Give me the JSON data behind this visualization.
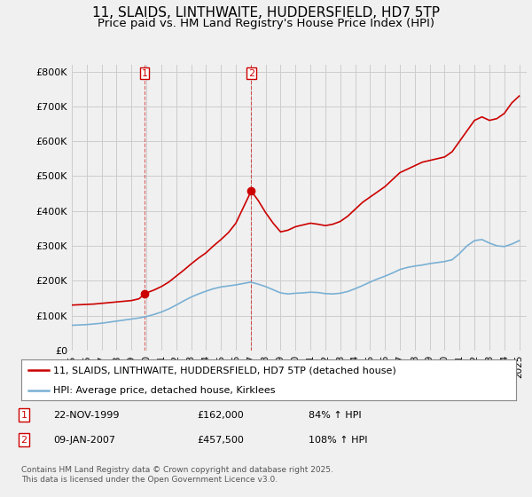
{
  "title": "11, SLAIDS, LINTHWAITE, HUDDERSFIELD, HD7 5TP",
  "subtitle": "Price paid vs. HM Land Registry's House Price Index (HPI)",
  "title_fontsize": 11,
  "subtitle_fontsize": 9.5,
  "background_color": "#f0f0f0",
  "plot_bg_color": "#f0f0f0",
  "grid_color": "#cccccc",
  "red_color": "#cc0000",
  "blue_color": "#7ab0d4",
  "ylim": [
    0,
    820000
  ],
  "yticks": [
    0,
    100000,
    200000,
    300000,
    400000,
    500000,
    600000,
    700000,
    800000
  ],
  "ytick_labels": [
    "£0",
    "£100K",
    "£200K",
    "£300K",
    "£400K",
    "£500K",
    "£600K",
    "£700K",
    "£800K"
  ],
  "xmin": 1995.0,
  "xmax": 2025.5,
  "transaction1_date": 1999.89,
  "transaction1_price": 162000,
  "transaction2_date": 2007.03,
  "transaction2_price": 457500,
  "legend_label_red": "11, SLAIDS, LINTHWAITE, HUDDERSFIELD, HD7 5TP (detached house)",
  "legend_label_blue": "HPI: Average price, detached house, Kirklees",
  "footer": "Contains HM Land Registry data © Crown copyright and database right 2025.\nThis data is licensed under the Open Government Licence v3.0.",
  "red_line_x": [
    1995.0,
    1995.5,
    1996.0,
    1996.5,
    1997.0,
    1997.5,
    1998.0,
    1998.5,
    1999.0,
    1999.5,
    1999.89,
    2000.0,
    2000.5,
    2001.0,
    2001.5,
    2002.0,
    2002.5,
    2003.0,
    2003.5,
    2004.0,
    2004.5,
    2005.0,
    2005.5,
    2006.0,
    2006.5,
    2007.03,
    2007.5,
    2008.0,
    2008.5,
    2009.0,
    2009.5,
    2010.0,
    2010.5,
    2011.0,
    2011.5,
    2012.0,
    2012.5,
    2013.0,
    2013.5,
    2014.0,
    2014.5,
    2015.0,
    2015.5,
    2016.0,
    2016.5,
    2017.0,
    2017.5,
    2018.0,
    2018.5,
    2019.0,
    2019.5,
    2020.0,
    2020.5,
    2021.0,
    2021.5,
    2022.0,
    2022.5,
    2023.0,
    2023.5,
    2024.0,
    2024.5,
    2025.0
  ],
  "red_line_y": [
    130000,
    131000,
    132000,
    133000,
    135000,
    137000,
    139000,
    141000,
    143000,
    148000,
    162000,
    165000,
    173000,
    183000,
    196000,
    213000,
    230000,
    248000,
    265000,
    280000,
    300000,
    318000,
    338000,
    365000,
    410000,
    457500,
    430000,
    395000,
    365000,
    340000,
    345000,
    355000,
    360000,
    365000,
    362000,
    358000,
    362000,
    370000,
    385000,
    405000,
    425000,
    440000,
    455000,
    470000,
    490000,
    510000,
    520000,
    530000,
    540000,
    545000,
    550000,
    555000,
    570000,
    600000,
    630000,
    660000,
    670000,
    660000,
    665000,
    680000,
    710000,
    730000
  ],
  "blue_line_x": [
    1995.0,
    1995.5,
    1996.0,
    1996.5,
    1997.0,
    1997.5,
    1998.0,
    1998.5,
    1999.0,
    1999.5,
    2000.0,
    2000.5,
    2001.0,
    2001.5,
    2002.0,
    2002.5,
    2003.0,
    2003.5,
    2004.0,
    2004.5,
    2005.0,
    2005.5,
    2006.0,
    2006.5,
    2007.0,
    2007.5,
    2008.0,
    2008.5,
    2009.0,
    2009.5,
    2010.0,
    2010.5,
    2011.0,
    2011.5,
    2012.0,
    2012.5,
    2013.0,
    2013.5,
    2014.0,
    2014.5,
    2015.0,
    2015.5,
    2016.0,
    2016.5,
    2017.0,
    2017.5,
    2018.0,
    2018.5,
    2019.0,
    2019.5,
    2020.0,
    2020.5,
    2021.0,
    2021.5,
    2022.0,
    2022.5,
    2023.0,
    2023.5,
    2024.0,
    2024.5,
    2025.0
  ],
  "blue_line_y": [
    72000,
    73000,
    74000,
    76000,
    78000,
    81000,
    84000,
    87000,
    90000,
    93000,
    97000,
    103000,
    110000,
    119000,
    130000,
    142000,
    153000,
    162000,
    170000,
    177000,
    182000,
    185000,
    188000,
    192000,
    196000,
    190000,
    183000,
    174000,
    165000,
    162000,
    164000,
    165000,
    167000,
    166000,
    163000,
    162000,
    164000,
    169000,
    177000,
    186000,
    196000,
    205000,
    213000,
    222000,
    232000,
    238000,
    242000,
    245000,
    249000,
    252000,
    255000,
    260000,
    278000,
    300000,
    315000,
    318000,
    308000,
    300000,
    298000,
    305000,
    315000
  ]
}
